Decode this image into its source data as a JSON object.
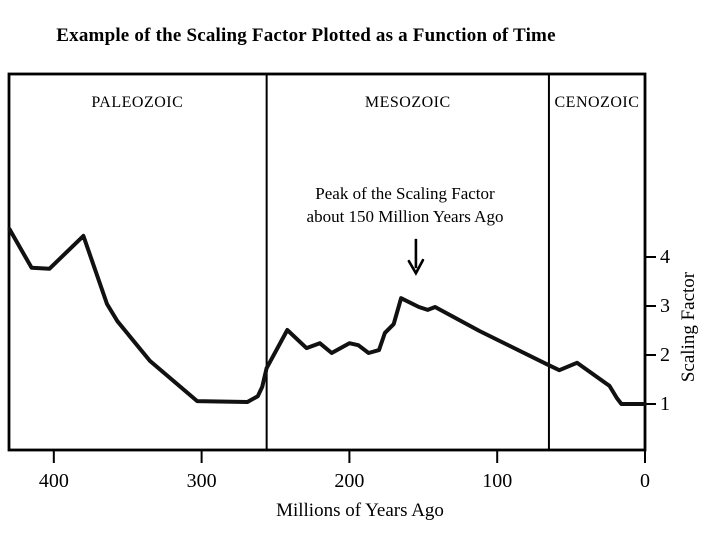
{
  "page": {
    "title": "Example of the Scaling Factor Plotted as a Function of Time"
  },
  "chart_data": {
    "type": "line",
    "title": "Example of the Scaling Factor Plotted as a Function of Time",
    "xlabel": "Millions of Years Ago",
    "ylabel": "Scaling Factor",
    "x_axis": {
      "direction": "reversed",
      "range_mya": [
        431,
        0
      ],
      "ticks": [
        400,
        300,
        200,
        100,
        0
      ]
    },
    "y_axis": {
      "ticks": [
        1,
        2,
        3,
        4
      ]
    },
    "grid": false,
    "eras": [
      {
        "name": "PALEOZOIC",
        "from_mya": 431,
        "to_mya": 256
      },
      {
        "name": "MESOZOIC",
        "from_mya": 256,
        "to_mya": 65
      },
      {
        "name": "CENOZOIC",
        "from_mya": 65,
        "to_mya": 0
      }
    ],
    "era_boundaries_mya": [
      256,
      65
    ],
    "series": [
      {
        "name": "Scaling Factor",
        "points": [
          [
            430,
            4.57
          ],
          [
            415,
            3.78
          ],
          [
            403,
            3.76
          ],
          [
            380,
            4.43
          ],
          [
            364,
            3.04
          ],
          [
            357,
            2.69
          ],
          [
            335,
            1.88
          ],
          [
            303,
            1.06
          ],
          [
            269,
            1.04
          ],
          [
            262,
            1.16
          ],
          [
            259,
            1.35
          ],
          [
            256,
            1.73
          ],
          [
            242,
            2.51
          ],
          [
            229,
            2.14
          ],
          [
            220,
            2.24
          ],
          [
            212,
            2.04
          ],
          [
            200,
            2.24
          ],
          [
            194,
            2.2
          ],
          [
            187,
            2.04
          ],
          [
            180,
            2.1
          ],
          [
            176,
            2.45
          ],
          [
            170,
            2.63
          ],
          [
            165,
            3.16
          ],
          [
            153,
            2.98
          ],
          [
            147,
            2.92
          ],
          [
            142,
            2.98
          ],
          [
            112,
            2.49
          ],
          [
            67,
            1.82
          ],
          [
            58,
            1.69
          ],
          [
            46,
            1.84
          ],
          [
            24,
            1.37
          ],
          [
            19,
            1.12
          ],
          [
            16,
            1.0
          ],
          [
            0,
            1.0
          ]
        ]
      }
    ],
    "annotation": {
      "lines": [
        "Peak of the Scaling Factor",
        "about 150 Million Years Ago"
      ],
      "arrow": {
        "mya": 155,
        "tail_value": 4.37,
        "tip_value": 3.67
      }
    },
    "colors": {
      "line": "#111111",
      "axis": "#000000",
      "text": "#000000",
      "background": "#ffffff"
    }
  }
}
